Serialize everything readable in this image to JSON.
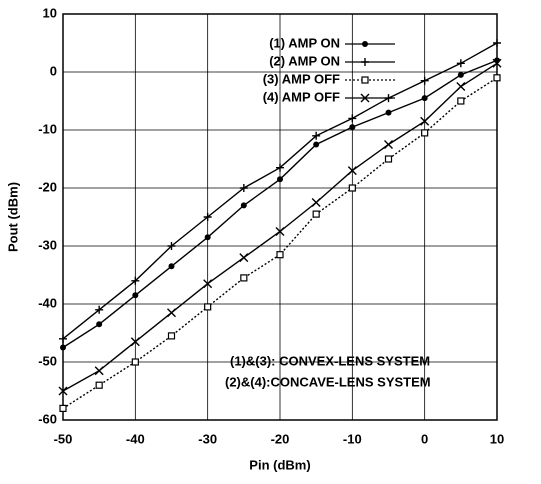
{
  "chart_data": {
    "type": "line",
    "xlabel": "Pin (dBm)",
    "ylabel": "Pout (dBm)",
    "x": [
      -50,
      -45,
      -40,
      -35,
      -30,
      -25,
      -20,
      -15,
      -10,
      -5,
      0,
      5,
      10
    ],
    "series": [
      {
        "name": "(1) AMP  ON",
        "color": "#000000",
        "marker": "dot",
        "dashed": false,
        "values": [
          -47.5,
          -43.5,
          -38.5,
          -33.5,
          -28.5,
          -23,
          -18.5,
          -12.5,
          -9.5,
          -7,
          -4.5,
          -0.5,
          2
        ]
      },
      {
        "name": "(2) AMP  ON",
        "color": "#000000",
        "marker": "plus",
        "dashed": false,
        "values": [
          -46,
          -41,
          -36,
          -30,
          -25,
          -20,
          -16.5,
          -11,
          -8,
          -4.5,
          -1.5,
          1.5,
          5
        ]
      },
      {
        "name": "(3) AMP OFF",
        "color": "#000000",
        "marker": "square",
        "dashed": true,
        "values": [
          -58,
          -54,
          -50,
          -45.5,
          -40.5,
          -35.5,
          -31.5,
          -24.5,
          -20,
          -15,
          -10.5,
          -5,
          -1
        ]
      },
      {
        "name": "(4) AMP OFF",
        "color": "#000000",
        "marker": "cross",
        "dashed": false,
        "values": [
          -55,
          -51.5,
          -46.5,
          -41.5,
          -36.5,
          -32,
          -27.5,
          -22.5,
          -17,
          -12.5,
          -8.5,
          -2.5,
          1.5
        ]
      }
    ],
    "annotations": [
      "(1)&(3): CONVEX-LENS SYSTEM",
      "(2)&(4):CONCAVE-LENS SYSTEM"
    ],
    "xlim": [
      -50,
      10
    ],
    "xticks": [
      -50,
      -40,
      -30,
      -20,
      -10,
      0,
      10
    ],
    "ylim": [
      -60,
      10
    ],
    "yticks": [
      -60,
      -50,
      -40,
      -30,
      -20,
      -10,
      0,
      10
    ],
    "grid": true
  }
}
